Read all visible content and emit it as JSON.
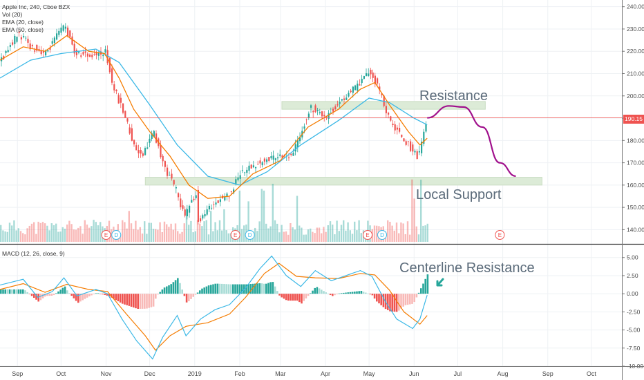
{
  "legend": {
    "symbol_line": "Apple Inc, 240, Cboe BZX",
    "vol_line": "Vol (20)",
    "ema_fast_line": "EMA (20, close)",
    "ema_slow_line": "EMA (50, close)",
    "macd_line": "MACD (12, 26, close, 9)"
  },
  "annotations": {
    "resistance": "Resistance",
    "local_support": "Local Support",
    "centerline_resistance": "Centerline Resistance"
  },
  "price_tag": "190.15",
  "colors": {
    "up": "#26a69a",
    "down": "#ef5350",
    "ema_fast": "#f57c00",
    "ema_slow": "#3bb8e6",
    "zone": "#dcebd7",
    "projection": "#a0108c",
    "hist_up": "#26a69a",
    "hist_up_light": "#a8dcd6",
    "hist_down": "#ef5350",
    "hist_down_light": "#f8b9b7"
  },
  "earnings_marker": "E",
  "dividend_marker": "D",
  "chart_data": [
    {
      "type": "candlestick",
      "x_start": "2018-08-20",
      "x_end": "2019-10-22",
      "xaxis_ticks": [
        "Sep",
        "Oct",
        "Nov",
        "Dec",
        "2019",
        "Feb",
        "Mar",
        "Apr",
        "May",
        "Jun",
        "Jul",
        "Aug",
        "Sep",
        "Oct"
      ],
      "ylim": [
        133,
        243
      ],
      "yticks": [
        140,
        150,
        160,
        170,
        180,
        190,
        200,
        210,
        220,
        230,
        240
      ],
      "ytick_labels": [
        "140.00",
        "150.00",
        "160.00",
        "170.00",
        "180.00",
        "190.00",
        "200.00",
        "210.00",
        "220.00",
        "230.00",
        "240.00"
      ],
      "current_price": 190.15,
      "close_path": [
        {
          "x": "2018-08-20",
          "y": 216
        },
        {
          "x": "2018-09-01",
          "y": 228
        },
        {
          "x": "2018-09-10",
          "y": 222
        },
        {
          "x": "2018-09-20",
          "y": 219
        },
        {
          "x": "2018-10-03",
          "y": 232
        },
        {
          "x": "2018-10-10",
          "y": 219
        },
        {
          "x": "2018-10-20",
          "y": 218
        },
        {
          "x": "2018-10-31",
          "y": 220
        },
        {
          "x": "2018-11-05",
          "y": 205
        },
        {
          "x": "2018-11-14",
          "y": 190
        },
        {
          "x": "2018-11-20",
          "y": 177
        },
        {
          "x": "2018-11-26",
          "y": 174
        },
        {
          "x": "2018-12-03",
          "y": 184
        },
        {
          "x": "2018-12-10",
          "y": 169
        },
        {
          "x": "2018-12-20",
          "y": 156
        },
        {
          "x": "2018-12-24",
          "y": 146
        },
        {
          "x": "2019-01-02",
          "y": 157
        },
        {
          "x": "2019-01-03",
          "y": 143
        },
        {
          "x": "2019-01-15",
          "y": 153
        },
        {
          "x": "2019-01-25",
          "y": 156
        },
        {
          "x": "2019-02-01",
          "y": 166
        },
        {
          "x": "2019-02-15",
          "y": 170
        },
        {
          "x": "2019-03-01",
          "y": 174
        },
        {
          "x": "2019-03-08",
          "y": 172
        },
        {
          "x": "2019-03-21",
          "y": 195
        },
        {
          "x": "2019-04-01",
          "y": 191
        },
        {
          "x": "2019-04-15",
          "y": 200
        },
        {
          "x": "2019-04-25",
          "y": 206
        },
        {
          "x": "2019-05-01",
          "y": 211
        },
        {
          "x": "2019-05-08",
          "y": 202
        },
        {
          "x": "2019-05-15",
          "y": 188
        },
        {
          "x": "2019-05-22",
          "y": 183
        },
        {
          "x": "2019-05-31",
          "y": 175
        },
        {
          "x": "2019-06-03",
          "y": 173
        },
        {
          "x": "2019-06-10",
          "y": 190.15
        }
      ],
      "ema_20_path": [
        {
          "x": "2018-08-20",
          "y": 216
        },
        {
          "x": "2018-09-05",
          "y": 222
        },
        {
          "x": "2018-09-20",
          "y": 220
        },
        {
          "x": "2018-10-05",
          "y": 227
        },
        {
          "x": "2018-10-20",
          "y": 220
        },
        {
          "x": "2018-10-31",
          "y": 219
        },
        {
          "x": "2018-11-10",
          "y": 208
        },
        {
          "x": "2018-11-20",
          "y": 194
        },
        {
          "x": "2018-12-01",
          "y": 184
        },
        {
          "x": "2018-12-15",
          "y": 173
        },
        {
          "x": "2018-12-28",
          "y": 160
        },
        {
          "x": "2019-01-10",
          "y": 154
        },
        {
          "x": "2019-01-25",
          "y": 155
        },
        {
          "x": "2019-02-10",
          "y": 165
        },
        {
          "x": "2019-03-01",
          "y": 171
        },
        {
          "x": "2019-03-20",
          "y": 186
        },
        {
          "x": "2019-04-10",
          "y": 194
        },
        {
          "x": "2019-04-25",
          "y": 203
        },
        {
          "x": "2019-05-05",
          "y": 206
        },
        {
          "x": "2019-05-15",
          "y": 196
        },
        {
          "x": "2019-05-28",
          "y": 184
        },
        {
          "x": "2019-06-05",
          "y": 178
        },
        {
          "x": "2019-06-10",
          "y": 181
        }
      ],
      "ema_50_path": [
        {
          "x": "2018-08-20",
          "y": 208
        },
        {
          "x": "2018-09-10",
          "y": 216
        },
        {
          "x": "2018-10-01",
          "y": 219
        },
        {
          "x": "2018-10-25",
          "y": 221
        },
        {
          "x": "2018-11-10",
          "y": 215
        },
        {
          "x": "2018-12-01",
          "y": 196
        },
        {
          "x": "2018-12-20",
          "y": 178
        },
        {
          "x": "2019-01-10",
          "y": 164
        },
        {
          "x": "2019-02-01",
          "y": 160
        },
        {
          "x": "2019-02-20",
          "y": 166
        },
        {
          "x": "2019-03-15",
          "y": 178
        },
        {
          "x": "2019-04-10",
          "y": 189
        },
        {
          "x": "2019-05-01",
          "y": 199
        },
        {
          "x": "2019-05-15",
          "y": 197
        },
        {
          "x": "2019-06-01",
          "y": 190
        },
        {
          "x": "2019-06-10",
          "y": 187
        }
      ],
      "zones": [
        {
          "label": "Resistance",
          "x_from": "2019-03-02",
          "x_to": "2019-07-20",
          "y_from": 194,
          "y_to": 197.5
        },
        {
          "label": "Local Support",
          "x_from": "2018-11-28",
          "x_to": "2019-08-28",
          "y_from": 160,
          "y_to": 163.5
        }
      ],
      "projection": [
        {
          "x": "2019-06-10",
          "y": 190.15
        },
        {
          "x": "2019-06-25",
          "y": 195.5
        },
        {
          "x": "2019-07-05",
          "y": 195
        },
        {
          "x": "2019-07-18",
          "y": 186
        },
        {
          "x": "2019-07-30",
          "y": 170
        },
        {
          "x": "2019-08-10",
          "y": 164
        }
      ],
      "events": [
        {
          "kind": "E",
          "x": "2018-11-01"
        },
        {
          "kind": "D",
          "x": "2018-11-08"
        },
        {
          "kind": "E",
          "x": "2019-01-29"
        },
        {
          "kind": "D",
          "x": "2019-02-08"
        },
        {
          "kind": "E",
          "x": "2019-04-30"
        },
        {
          "kind": "D",
          "x": "2019-05-10"
        },
        {
          "kind": "E",
          "x": "2019-07-30"
        }
      ]
    },
    {
      "type": "macd",
      "ylim": [
        -10,
        6.5
      ],
      "yticks": [
        5,
        2.5,
        0,
        -2.5,
        -5,
        -7.5,
        -10
      ],
      "ytick_labels": [
        "5.00",
        "2.50",
        "0.00",
        "-2.50",
        "-5.00",
        "-7.50",
        "-10.00"
      ],
      "macd_path": [
        {
          "x": "2018-08-20",
          "y": 1.2
        },
        {
          "x": "2018-09-05",
          "y": 2.0
        },
        {
          "x": "2018-09-15",
          "y": -0.5
        },
        {
          "x": "2018-09-25",
          "y": 0.3
        },
        {
          "x": "2018-10-03",
          "y": 2.2
        },
        {
          "x": "2018-10-12",
          "y": -0.3
        },
        {
          "x": "2018-10-25",
          "y": 0.6
        },
        {
          "x": "2018-11-02",
          "y": 0.0
        },
        {
          "x": "2018-11-12",
          "y": -3.5
        },
        {
          "x": "2018-11-22",
          "y": -6.5
        },
        {
          "x": "2018-12-03",
          "y": -9.0
        },
        {
          "x": "2018-12-10",
          "y": -6.0
        },
        {
          "x": "2018-12-20",
          "y": -3.0
        },
        {
          "x": "2018-12-26",
          "y": -5.8
        },
        {
          "x": "2019-01-05",
          "y": -3.5
        },
        {
          "x": "2019-01-15",
          "y": -2.2
        },
        {
          "x": "2019-01-25",
          "y": -1.5
        },
        {
          "x": "2019-02-05",
          "y": 0.8
        },
        {
          "x": "2019-02-15",
          "y": 3.5
        },
        {
          "x": "2019-02-23",
          "y": 5.2
        },
        {
          "x": "2019-03-05",
          "y": 2.5
        },
        {
          "x": "2019-03-15",
          "y": 1.0
        },
        {
          "x": "2019-03-25",
          "y": 3.2
        },
        {
          "x": "2019-04-05",
          "y": 1.8
        },
        {
          "x": "2019-04-15",
          "y": 2.5
        },
        {
          "x": "2019-04-25",
          "y": 3.2
        },
        {
          "x": "2019-05-03",
          "y": 2.4
        },
        {
          "x": "2019-05-12",
          "y": -1.0
        },
        {
          "x": "2019-05-20",
          "y": -3.5
        },
        {
          "x": "2019-05-31",
          "y": -4.8
        },
        {
          "x": "2019-06-05",
          "y": -3.5
        },
        {
          "x": "2019-06-10",
          "y": -0.2
        }
      ],
      "signal_path": [
        {
          "x": "2018-08-20",
          "y": 0.6
        },
        {
          "x": "2018-09-05",
          "y": 1.4
        },
        {
          "x": "2018-09-20",
          "y": 0.2
        },
        {
          "x": "2018-10-05",
          "y": 1.3
        },
        {
          "x": "2018-10-20",
          "y": 0.6
        },
        {
          "x": "2018-11-02",
          "y": 0.3
        },
        {
          "x": "2018-11-15",
          "y": -2.8
        },
        {
          "x": "2018-11-28",
          "y": -5.8
        },
        {
          "x": "2018-12-05",
          "y": -7.8
        },
        {
          "x": "2018-12-15",
          "y": -5.8
        },
        {
          "x": "2018-12-26",
          "y": -4.5
        },
        {
          "x": "2019-01-10",
          "y": -4.0
        },
        {
          "x": "2019-01-25",
          "y": -2.8
        },
        {
          "x": "2019-02-05",
          "y": -0.5
        },
        {
          "x": "2019-02-18",
          "y": 2.8
        },
        {
          "x": "2019-02-28",
          "y": 4.2
        },
        {
          "x": "2019-03-12",
          "y": 2.4
        },
        {
          "x": "2019-03-25",
          "y": 2.2
        },
        {
          "x": "2019-04-10",
          "y": 2.1
        },
        {
          "x": "2019-04-25",
          "y": 2.8
        },
        {
          "x": "2019-05-05",
          "y": 2.6
        },
        {
          "x": "2019-05-15",
          "y": 0.5
        },
        {
          "x": "2019-05-25",
          "y": -2.5
        },
        {
          "x": "2019-06-05",
          "y": -4.2
        },
        {
          "x": "2019-06-10",
          "y": -3.0
        }
      ]
    }
  ]
}
